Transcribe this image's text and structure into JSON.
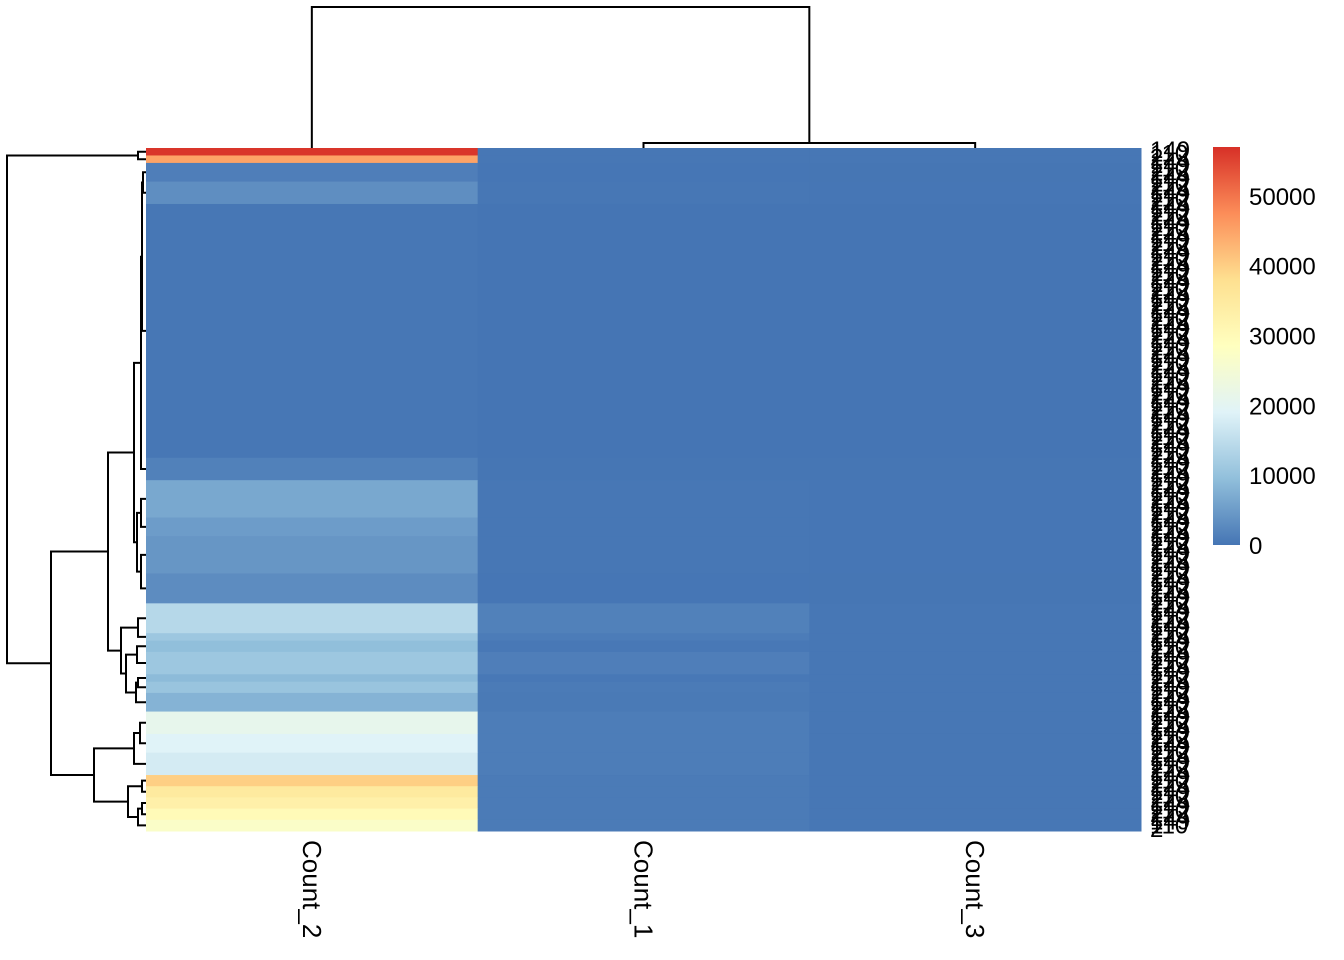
{
  "chart_data": {
    "type": "heatmap",
    "title": "",
    "columns": [
      "Count_2",
      "Count_1",
      "Count_3"
    ],
    "row_label_hints": [
      "149",
      "110",
      "2",
      "144"
    ],
    "colorbar": {
      "min": 0,
      "max": 57000,
      "ticks": [
        0,
        10000,
        20000,
        30000,
        40000,
        50000
      ],
      "tick_labels": [
        "0",
        "10000",
        "20000",
        "30000",
        "40000",
        "50000"
      ],
      "palette": [
        "#4575B4",
        "#91BFDB",
        "#E0F3F8",
        "#FFFFBF",
        "#FEE090",
        "#FC8D59",
        "#D73027"
      ]
    },
    "row_bands": [
      {
        "rows": 2,
        "values": [
          56500,
          300,
          200
        ]
      },
      {
        "rows": 2,
        "values": [
          45000,
          300,
          200
        ]
      },
      {
        "rows": 5,
        "values": [
          1200,
          150,
          100
        ]
      },
      {
        "rows": 6,
        "values": [
          3200,
          200,
          150
        ]
      },
      {
        "rows": 68,
        "values": [
          300,
          60,
          40
        ]
      },
      {
        "rows": 6,
        "values": [
          1500,
          100,
          80
        ]
      },
      {
        "rows": 10,
        "values": [
          6500,
          200,
          150
        ]
      },
      {
        "rows": 5,
        "values": [
          5000,
          200,
          150
        ]
      },
      {
        "rows": 10,
        "values": [
          4200,
          200,
          150
        ]
      },
      {
        "rows": 8,
        "values": [
          3000,
          150,
          120
        ]
      },
      {
        "rows": 8,
        "values": [
          14000,
          1500,
          300
        ]
      },
      {
        "rows": 2,
        "values": [
          11000,
          900,
          300
        ]
      },
      {
        "rows": 3,
        "values": [
          9500,
          400,
          250
        ]
      },
      {
        "rows": 6,
        "values": [
          11000,
          1200,
          250
        ]
      },
      {
        "rows": 2,
        "values": [
          9000,
          400,
          200
        ]
      },
      {
        "rows": 3,
        "values": [
          10500,
          800,
          250
        ]
      },
      {
        "rows": 5,
        "values": [
          8000,
          600,
          200
        ]
      },
      {
        "rows": 6,
        "values": [
          21000,
          1000,
          300
        ]
      },
      {
        "rows": 5,
        "values": [
          19000,
          1000,
          300
        ]
      },
      {
        "rows": 6,
        "values": [
          17500,
          1000,
          300
        ]
      },
      {
        "rows": 3,
        "values": [
          40000,
          800,
          300
        ]
      },
      {
        "rows": 3,
        "values": [
          35000,
          800,
          300
        ]
      },
      {
        "rows": 3,
        "values": [
          33000,
          800,
          300
        ]
      },
      {
        "rows": 3,
        "values": [
          30000,
          800,
          300
        ]
      },
      {
        "rows": 3,
        "values": [
          27000,
          800,
          300
        ]
      }
    ],
    "grid": false,
    "legend_position": "right"
  }
}
